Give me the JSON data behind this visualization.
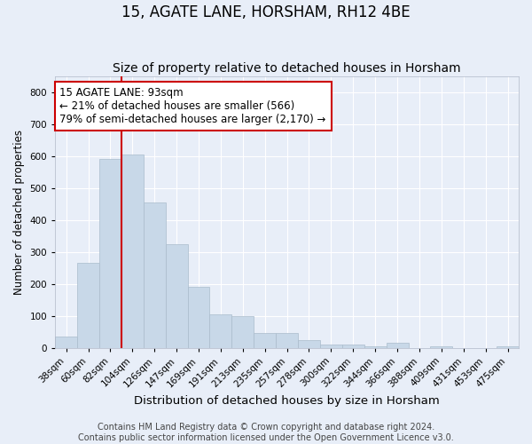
{
  "title": "15, AGATE LANE, HORSHAM, RH12 4BE",
  "subtitle": "Size of property relative to detached houses in Horsham",
  "xlabel": "Distribution of detached houses by size in Horsham",
  "ylabel": "Number of detached properties",
  "bins": [
    "38sqm",
    "60sqm",
    "82sqm",
    "104sqm",
    "126sqm",
    "147sqm",
    "169sqm",
    "191sqm",
    "213sqm",
    "235sqm",
    "257sqm",
    "278sqm",
    "300sqm",
    "322sqm",
    "344sqm",
    "366sqm",
    "388sqm",
    "409sqm",
    "431sqm",
    "453sqm",
    "475sqm"
  ],
  "values": [
    35,
    265,
    590,
    605,
    455,
    325,
    190,
    105,
    100,
    45,
    45,
    25,
    10,
    10,
    5,
    15,
    0,
    5,
    0,
    0,
    5
  ],
  "bar_color": "#c8d8e8",
  "bar_edge_color": "#aabccc",
  "vline_x_index": 2.5,
  "vline_color": "#cc0000",
  "annotation_text": "15 AGATE LANE: 93sqm\n← 21% of detached houses are smaller (566)\n79% of semi-detached houses are larger (2,170) →",
  "annotation_box_color": "#ffffff",
  "annotation_box_edge_color": "#cc0000",
  "background_color": "#e8eef8",
  "plot_background_color": "#e8eef8",
  "grid_color": "#ffffff",
  "ylim": [
    0,
    850
  ],
  "yticks": [
    0,
    100,
    200,
    300,
    400,
    500,
    600,
    700,
    800
  ],
  "footer": "Contains HM Land Registry data © Crown copyright and database right 2024.\nContains public sector information licensed under the Open Government Licence v3.0.",
  "title_fontsize": 12,
  "subtitle_fontsize": 10,
  "xlabel_fontsize": 9.5,
  "ylabel_fontsize": 8.5,
  "tick_fontsize": 7.5,
  "annotation_fontsize": 8.5,
  "footer_fontsize": 7
}
